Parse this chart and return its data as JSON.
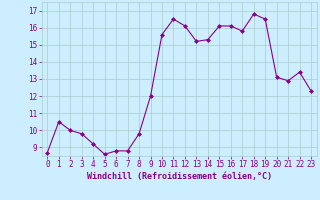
{
  "x": [
    0,
    1,
    2,
    3,
    4,
    5,
    6,
    7,
    8,
    9,
    10,
    11,
    12,
    13,
    14,
    15,
    16,
    17,
    18,
    19,
    20,
    21,
    22,
    23
  ],
  "y": [
    8.7,
    10.5,
    10.0,
    9.8,
    9.2,
    8.6,
    8.8,
    8.8,
    9.8,
    12.0,
    15.6,
    16.5,
    16.1,
    15.2,
    15.3,
    16.1,
    16.1,
    15.8,
    16.8,
    16.5,
    13.1,
    12.9,
    13.4,
    12.3
  ],
  "line_color": "#880088",
  "marker": "D",
  "marker_size": 2,
  "bg_color": "#cceeff",
  "grid_color": "#aacccc",
  "xlabel": "Windchill (Refroidissement éolien,°C)",
  "xlabel_color": "#880088",
  "tick_color": "#880088",
  "xlim": [
    -0.5,
    23.5
  ],
  "ylim": [
    8.5,
    17.5
  ],
  "yticks": [
    9,
    10,
    11,
    12,
    13,
    14,
    15,
    16,
    17
  ],
  "xticks": [
    0,
    1,
    2,
    3,
    4,
    5,
    6,
    7,
    8,
    9,
    10,
    11,
    12,
    13,
    14,
    15,
    16,
    17,
    18,
    19,
    20,
    21,
    22,
    23
  ],
  "tick_fontsize": 5.5,
  "xlabel_fontsize": 6.0
}
